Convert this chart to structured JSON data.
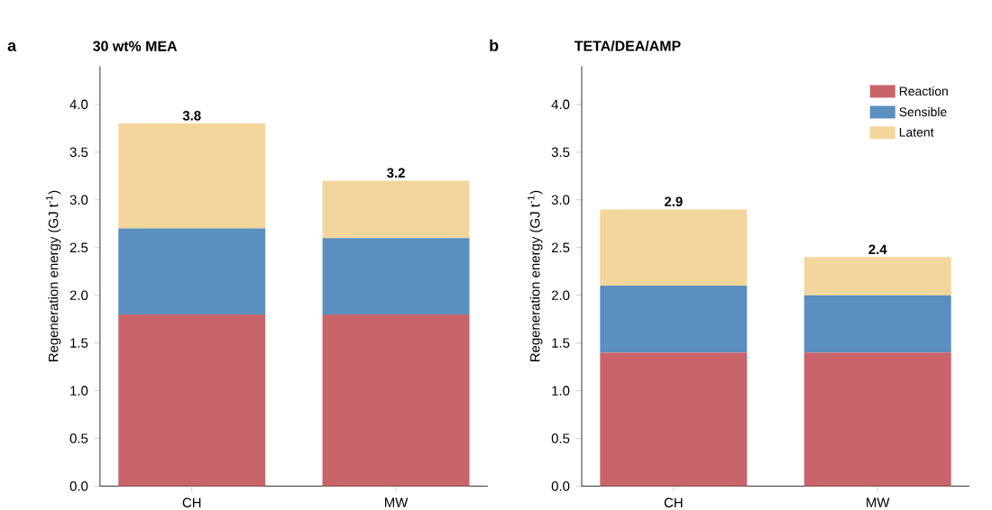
{
  "chart_data": [
    {
      "type": "bar",
      "title": "30 wt% MEA",
      "annotations": [
        "a"
      ],
      "ylabel": "Regeneration energy (GJ t$^{-1}$)",
      "categories": [
        "CH",
        "MW"
      ],
      "stacked": true,
      "ylim": [
        0,
        4.4
      ],
      "yticks": [
        {
          "value": 0,
          "label": "0.0"
        },
        {
          "value": 0.5,
          "label": "0.5"
        },
        {
          "value": 1,
          "label": "1.0"
        },
        {
          "value": 1.5,
          "label": "1.5"
        },
        {
          "value": 2,
          "label": "2.0"
        },
        {
          "value": 2.5,
          "label": "2.5"
        },
        {
          "value": 3,
          "label": "3.0"
        },
        {
          "value": 3.5,
          "label": "3.5"
        },
        {
          "value": 4,
          "label": "4.0"
        }
      ],
      "series": [
        {
          "color": "#c9646b",
          "values": [
            1.8,
            1.8
          ]
        },
        {
          "color": "#5a8fbf",
          "values": [
            0.9,
            0.8
          ]
        },
        {
          "color": "#f2d69c",
          "values": [
            1.1,
            0.6
          ]
        }
      ],
      "totals": [
        "3.8",
        "3.2"
      ]
    },
    {
      "type": "bar",
      "title": "TETA/DEA/AMP",
      "annotations": [
        "b"
      ],
      "ylabel": "Regeneration energy (GJ t$^{-1}$)",
      "categories": [
        "CH",
        "MW"
      ],
      "stacked": true,
      "legend": "top right",
      "ylim": [
        0,
        4.4
      ],
      "yticks": [
        {
          "value": 0,
          "label": "0.0"
        },
        {
          "value": 0.5,
          "label": "0.5"
        },
        {
          "value": 1,
          "label": "1.0"
        },
        {
          "value": 1.5,
          "label": "1.5"
        },
        {
          "value": 2,
          "label": "2.0"
        },
        {
          "value": 2.5,
          "label": "2.5"
        },
        {
          "value": 3,
          "label": "3.0"
        },
        {
          "value": 3.5,
          "label": "3.5"
        },
        {
          "value": 4,
          "label": "4.0"
        }
      ],
      "series": [
        {
          "name": "Reaction",
          "color": "#c9646b",
          "values": [
            1.4,
            1.4
          ]
        },
        {
          "name": "Sensible",
          "color": "#5a8fbf",
          "values": [
            0.7,
            0.6
          ]
        },
        {
          "name": "Latent",
          "color": "#f2d69c",
          "values": [
            0.8,
            0.4
          ]
        }
      ],
      "totals": [
        "2.9",
        "2.4"
      ]
    }
  ]
}
